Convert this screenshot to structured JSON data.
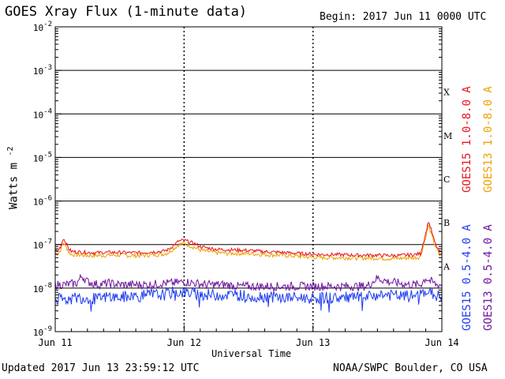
{
  "header": {
    "title": "GOES Xray Flux (1-minute data)",
    "begin": "Begin:  2017 Jun 11 0000 UTC"
  },
  "footer": {
    "updated": "Updated 2017 Jun 13 23:59:12 UTC",
    "credit": "NOAA/SWPC Boulder, CO USA"
  },
  "chart_data": {
    "type": "line",
    "title": "GOES Xray Flux (1-minute data)",
    "xlabel": "Universal Time",
    "ylabel": "Watts m",
    "ylabel_sup": "-2",
    "yscale": "log",
    "ylim": [
      1e-09,
      0.01
    ],
    "xlim": [
      0,
      72
    ],
    "grid": true,
    "legend_placement": "right (vertical)",
    "y_ticks": [
      {
        "base": "10",
        "exp": "-2",
        "value": 0.01
      },
      {
        "base": "10",
        "exp": "-3",
        "value": 0.001
      },
      {
        "base": "10",
        "exp": "-4",
        "value": 0.0001
      },
      {
        "base": "10",
        "exp": "-5",
        "value": 1e-05
      },
      {
        "base": "10",
        "exp": "-6",
        "value": 1e-06
      },
      {
        "base": "10",
        "exp": "-7",
        "value": 1e-07
      },
      {
        "base": "10",
        "exp": "-8",
        "value": 1e-08
      },
      {
        "base": "10",
        "exp": "-9",
        "value": 1e-09
      }
    ],
    "x_ticks": [
      {
        "label": "Jun 11",
        "hour": 0
      },
      {
        "label": "Jun 12",
        "hour": 24
      },
      {
        "label": "Jun 13",
        "hour": 48
      },
      {
        "label": "Jun 14",
        "hour": 72
      }
    ],
    "flare_classes": [
      {
        "label": "X",
        "value": 0.0001
      },
      {
        "label": "M",
        "value": 1e-05
      },
      {
        "label": "C",
        "value": 1e-06
      },
      {
        "label": "B",
        "value": 1e-07
      },
      {
        "label": "A",
        "value": 1e-08
      }
    ],
    "series": [
      {
        "name": "GOES13 1.0-8.0 A",
        "color": "#f2a000",
        "x": [
          0,
          0.5,
          1,
          1.5,
          2,
          2.5,
          3,
          4,
          6,
          8,
          10,
          12,
          14,
          16,
          18,
          20,
          21,
          22,
          23,
          24,
          25,
          26,
          27,
          28,
          30,
          32,
          34,
          36,
          38,
          40,
          42,
          44,
          46,
          48,
          50,
          52,
          54,
          56,
          58,
          60,
          62,
          64,
          66,
          67,
          68,
          69,
          69.5,
          70,
          70.5,
          71,
          71.5,
          72
        ],
        "y": [
          6.2e-08,
          6.2e-08,
          7.5e-08,
          1.1e-07,
          9e-08,
          6.8e-08,
          5.9e-08,
          5.8e-08,
          5.6e-08,
          5.6e-08,
          5.7e-08,
          5.7e-08,
          5.6e-08,
          5.6e-08,
          5.8e-08,
          6e-08,
          6.5e-08,
          8e-08,
          1e-07,
          1.05e-07,
          9.5e-08,
          8.5e-08,
          7.5e-08,
          7e-08,
          6.5e-08,
          6.3e-08,
          6.3e-08,
          6.2e-08,
          6e-08,
          5.8e-08,
          5.7e-08,
          5.5e-08,
          5.3e-08,
          5.1e-08,
          5e-08,
          5e-08,
          5e-08,
          4.9e-08,
          4.9e-08,
          4.9e-08,
          4.8e-08,
          4.8e-08,
          5e-08,
          5e-08,
          5.2e-08,
          1.5e-07,
          2.8e-07,
          1.8e-07,
          1.1e-07,
          8e-08,
          5.8e-08,
          5.6e-08
        ]
      },
      {
        "name": "GOES15 1.0-8.0 A",
        "color": "#e8141e",
        "x": [
          0,
          0.5,
          1,
          1.5,
          2,
          2.5,
          3,
          4,
          6,
          8,
          10,
          12,
          14,
          16,
          18,
          20,
          21,
          22,
          23,
          24,
          25,
          26,
          27,
          28,
          30,
          32,
          34,
          36,
          38,
          40,
          42,
          44,
          46,
          48,
          50,
          52,
          54,
          56,
          58,
          60,
          62,
          64,
          66,
          67,
          68,
          69,
          69.5,
          70,
          70.5,
          71,
          71.5,
          72
        ],
        "y": [
          7.2e-08,
          7.2e-08,
          9e-08,
          1.4e-07,
          1.1e-07,
          8e-08,
          7e-08,
          6.8e-08,
          6.6e-08,
          6.5e-08,
          6.6e-08,
          6.6e-08,
          6.5e-08,
          6.5e-08,
          6.8e-08,
          7e-08,
          7.6e-08,
          9.5e-08,
          1.2e-07,
          1.25e-07,
          1.15e-07,
          1.05e-07,
          9e-08,
          8.5e-08,
          7.8e-08,
          7.6e-08,
          7.5e-08,
          7.3e-08,
          7e-08,
          6.8e-08,
          6.6e-08,
          6.4e-08,
          6.2e-08,
          6e-08,
          5.9e-08,
          5.9e-08,
          5.8e-08,
          5.7e-08,
          5.7e-08,
          5.7e-08,
          5.6e-08,
          5.6e-08,
          5.8e-08,
          5.9e-08,
          6.2e-08,
          1.8e-07,
          3.5e-07,
          2.2e-07,
          1.3e-07,
          9e-08,
          6.8e-08,
          6.5e-08
        ]
      },
      {
        "name": "GOES13 0.5-4.0 A",
        "color": "#6e14a0",
        "x": [
          0,
          2,
          4,
          5,
          6,
          8,
          10,
          12,
          14,
          16,
          18,
          20,
          22,
          24,
          26,
          28,
          30,
          32,
          34,
          36,
          38,
          40,
          42,
          44,
          46,
          48,
          50,
          52,
          54,
          56,
          58,
          60,
          62,
          64,
          66,
          68,
          69,
          70,
          71,
          72
        ],
        "y": [
          1.2e-08,
          1.2e-08,
          1.3e-08,
          1.9e-08,
          1.4e-08,
          1.2e-08,
          1.3e-08,
          1.2e-08,
          1.2e-08,
          1.2e-08,
          1.2e-08,
          1.3e-08,
          1.3e-08,
          1.4e-08,
          1.3e-08,
          1.2e-08,
          1.2e-08,
          1.2e-08,
          1.1e-08,
          1.1e-08,
          1.1e-08,
          1.1e-08,
          1.1e-08,
          1.1e-08,
          1.1e-08,
          1.1e-08,
          1.1e-08,
          1.1e-08,
          1.1e-08,
          1.1e-08,
          1.1e-08,
          1.7e-08,
          1.4e-08,
          1.3e-08,
          1.2e-08,
          1.2e-08,
          1.7e-08,
          1.4e-08,
          1.2e-08,
          1.2e-08
        ]
      },
      {
        "name": "GOES15 0.5-4.0 A",
        "color": "#1e3cf0",
        "x": [
          0,
          2,
          4,
          6,
          8,
          10,
          12,
          14,
          16,
          18,
          20,
          22,
          24,
          26,
          28,
          30,
          32,
          34,
          36,
          38,
          40,
          42,
          44,
          46,
          48,
          50,
          52,
          54,
          56,
          58,
          60,
          62,
          64,
          66,
          68,
          69,
          70,
          71,
          72
        ],
        "y": [
          5.5e-09,
          5.5e-09,
          6e-09,
          6e-09,
          5.5e-09,
          6.5e-09,
          6e-09,
          6.5e-09,
          6.5e-09,
          7e-09,
          7e-09,
          8e-09,
          8e-09,
          7.5e-09,
          7e-09,
          7e-09,
          7e-09,
          7e-09,
          6.5e-09,
          6.5e-09,
          6.5e-09,
          6e-09,
          6e-09,
          6e-09,
          6e-09,
          6e-09,
          6e-09,
          6e-09,
          6e-09,
          6e-09,
          7e-09,
          7e-09,
          6.5e-09,
          6.5e-09,
          7e-09,
          9e-09,
          7.5e-09,
          6.5e-09,
          6.5e-09
        ]
      }
    ]
  }
}
